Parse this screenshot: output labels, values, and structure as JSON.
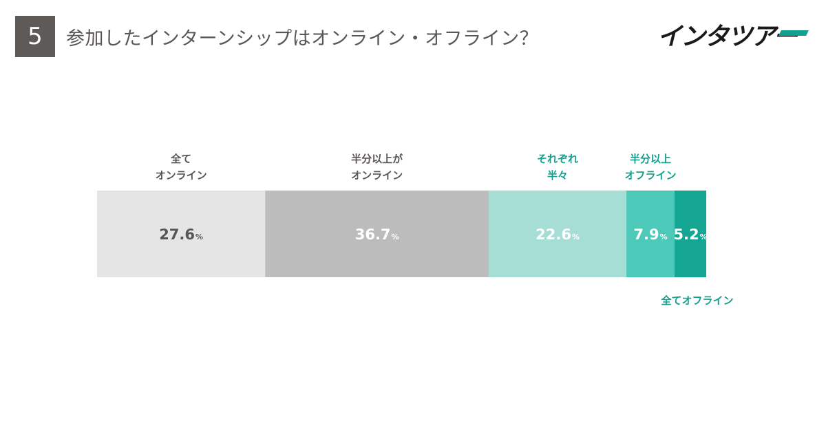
{
  "header": {
    "number": "5",
    "title": "参加したインターンシップはオンライン・オフライン？",
    "logo": "インタツアー"
  },
  "chart_data": {
    "type": "bar",
    "orientation": "horizontal-stacked-100",
    "unit": "%",
    "grid": false,
    "series": [
      {
        "name": "全て オンライン",
        "label_lines": [
          "全て",
          "オンライン"
        ],
        "value": 27.6,
        "value_text": "27.6",
        "color": "#e5e5e5",
        "text_color": "#5a5654",
        "label_color": "#5a5654",
        "label_position": "above"
      },
      {
        "name": "半分以上が オンライン",
        "label_lines": [
          "半分以上が",
          "オンライン"
        ],
        "value": 36.7,
        "value_text": "36.7",
        "color": "#bcbcbc",
        "text_color": "#ffffff",
        "label_color": "#5a5654",
        "label_position": "above"
      },
      {
        "name": "それぞれ 半々",
        "label_lines": [
          "それぞれ",
          "半々"
        ],
        "value": 22.6,
        "value_text": "22.6",
        "color": "#a6ddd5",
        "text_color": "#ffffff",
        "label_color": "#14a08e",
        "label_position": "above"
      },
      {
        "name": "半分以上 オフライン",
        "label_lines": [
          "半分以上",
          "オフライン"
        ],
        "value": 7.9,
        "value_text": "7.9",
        "color": "#4cc9b8",
        "text_color": "#ffffff",
        "label_color": "#14a08e",
        "label_position": "above"
      },
      {
        "name": "全てオフライン",
        "label_lines": [
          "全てオフライン"
        ],
        "value": 5.2,
        "value_text": "5.2",
        "color": "#14a593",
        "text_color": "#ffffff",
        "label_color": "#14a08e",
        "label_position": "below"
      }
    ]
  }
}
